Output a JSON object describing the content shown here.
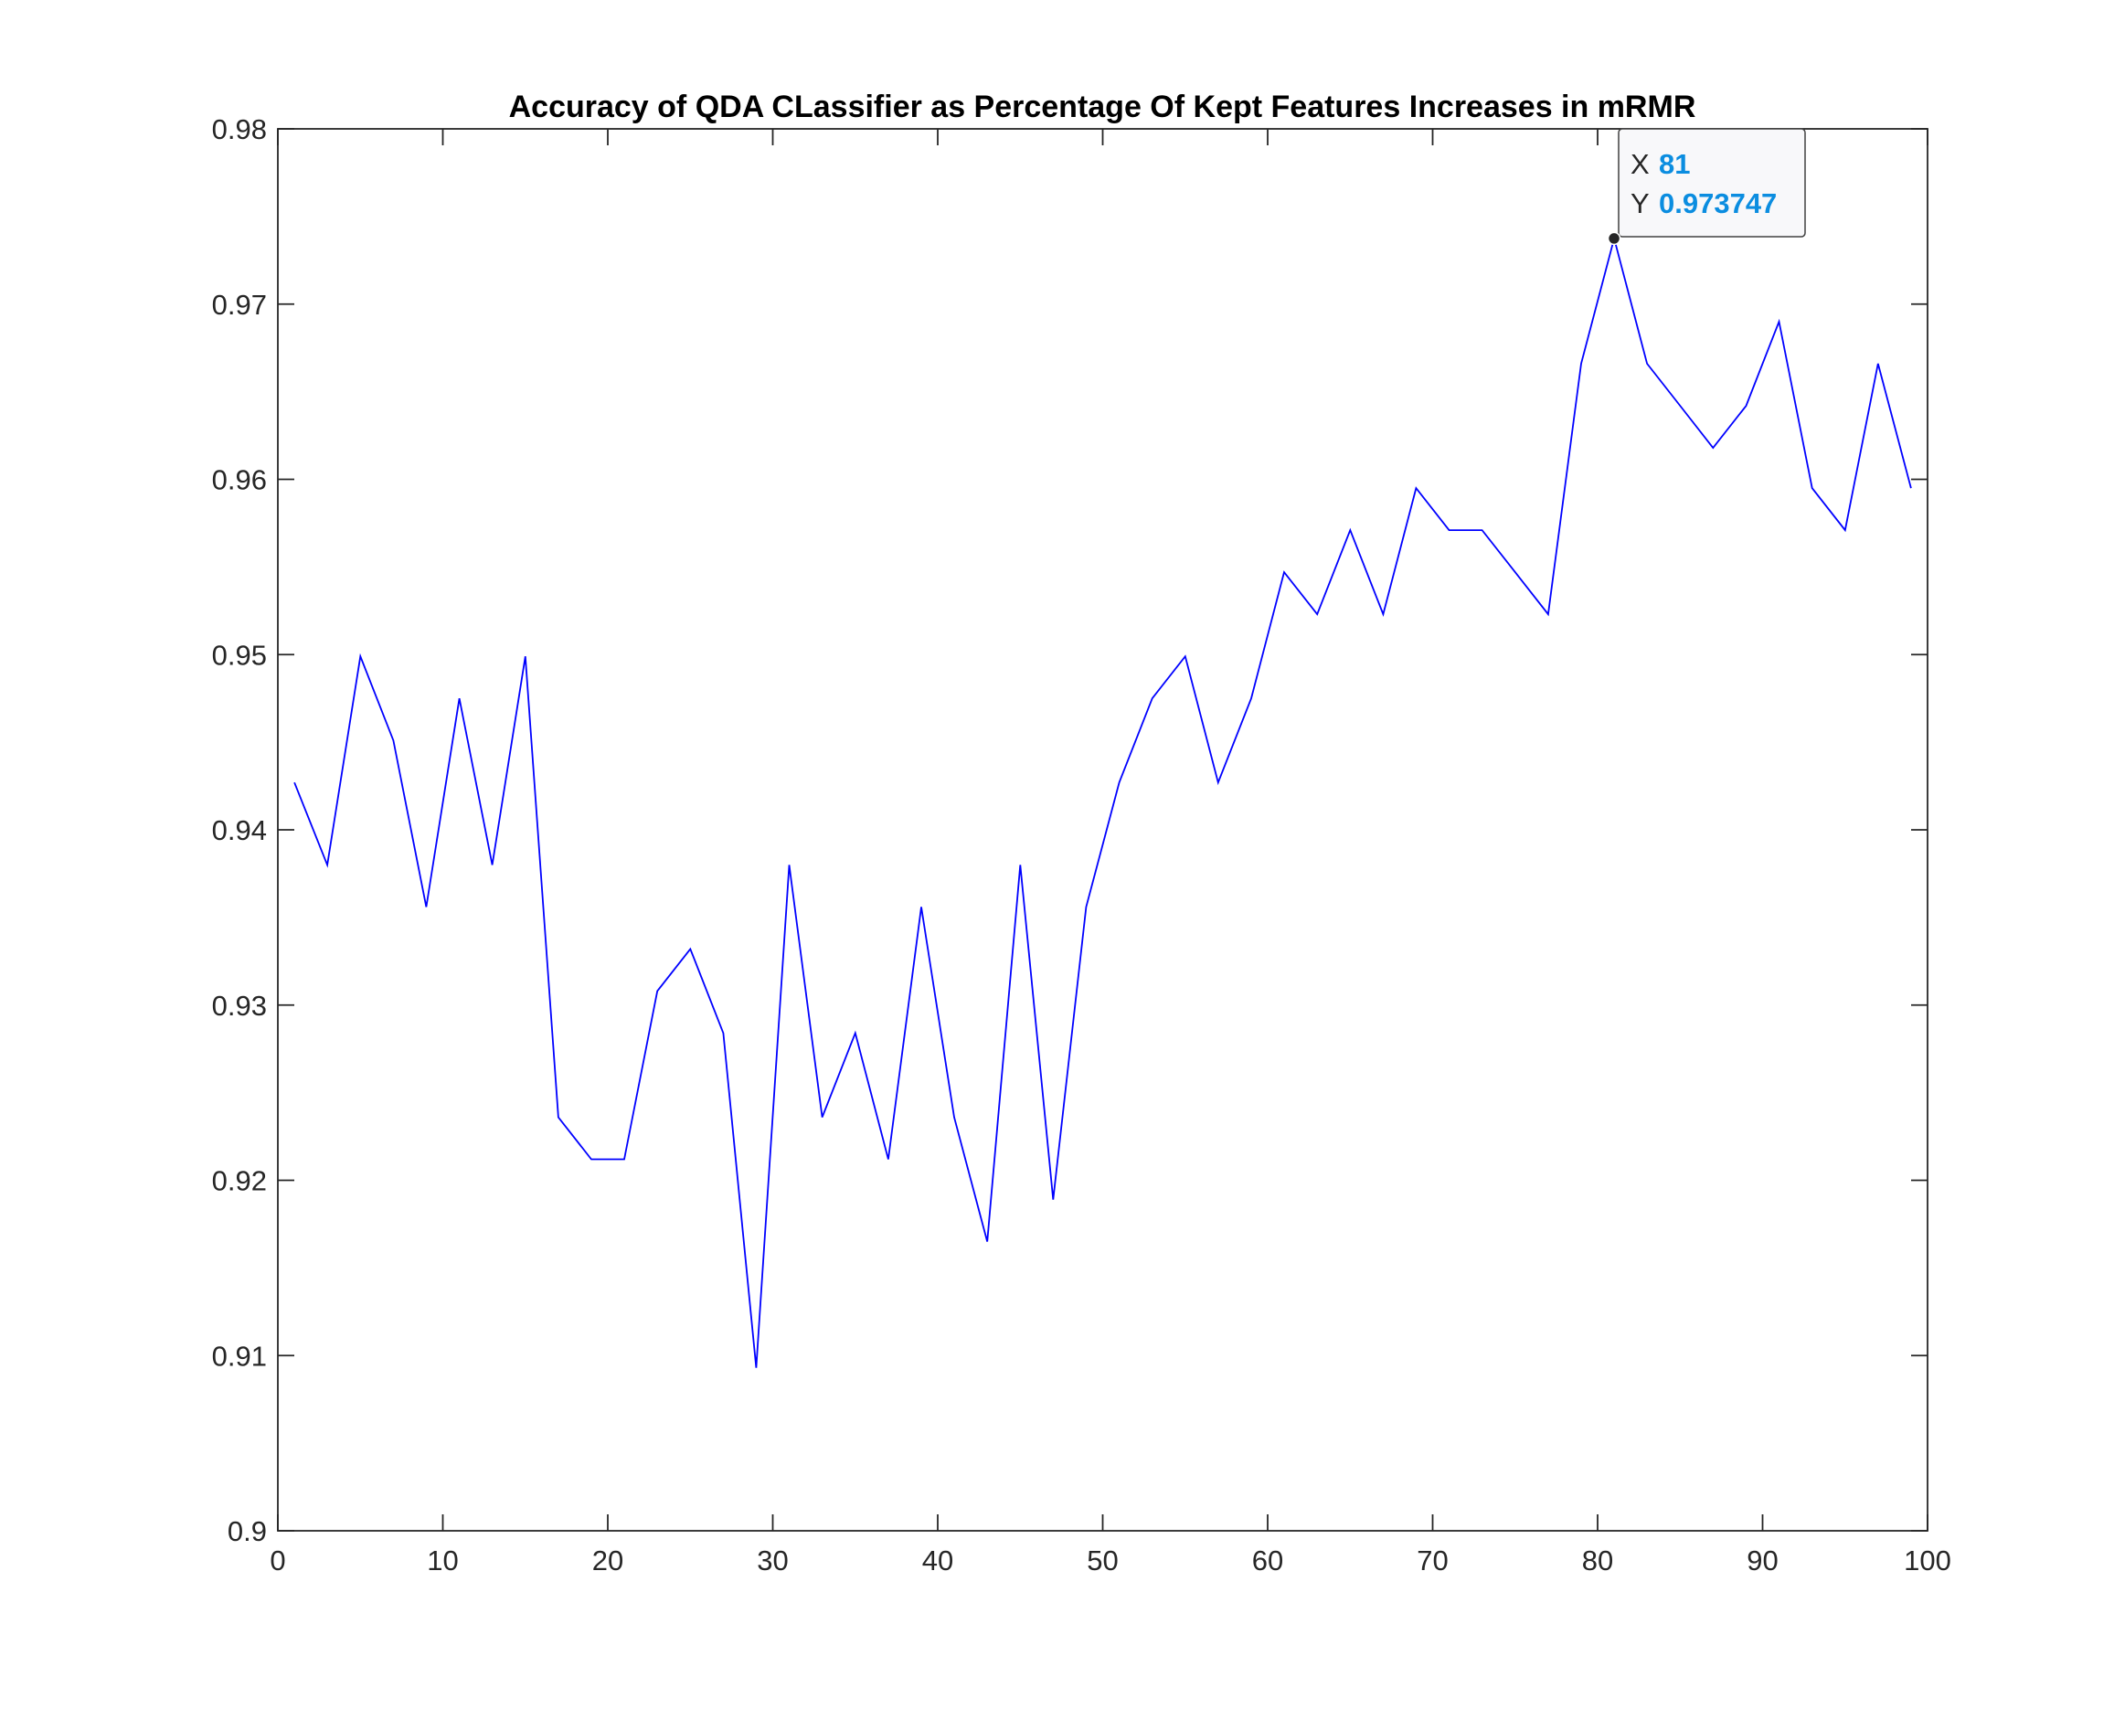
{
  "chart_data": {
    "type": "line",
    "title": "Accuracy of QDA CLassifier as Percentage Of Kept Features Increases in mRMR",
    "xlabel": "",
    "ylabel": "",
    "xlim": [
      0,
      100
    ],
    "ylim": [
      0.9,
      0.98
    ],
    "xticks": [
      0,
      10,
      20,
      30,
      40,
      50,
      60,
      70,
      80,
      90,
      100
    ],
    "xtick_labels": [
      "0",
      "10",
      "20",
      "30",
      "40",
      "50",
      "60",
      "70",
      "80",
      "90",
      "100"
    ],
    "yticks": [
      0.9,
      0.91,
      0.92,
      0.93,
      0.94,
      0.95,
      0.96,
      0.97,
      0.98
    ],
    "ytick_labels": [
      "0.9",
      "0.91",
      "0.92",
      "0.93",
      "0.94",
      "0.95",
      "0.96",
      "0.97",
      "0.98"
    ],
    "grid": false,
    "series": [
      {
        "color": "#0000ff",
        "x": [
          1,
          3,
          5,
          7,
          9,
          11,
          13,
          15,
          17,
          19,
          21,
          23,
          25,
          27,
          29,
          31,
          33,
          35,
          37,
          39,
          41,
          43,
          45,
          47,
          49,
          51,
          53,
          55,
          57,
          59,
          61,
          63,
          65,
          67,
          69,
          71,
          73,
          75,
          77,
          79,
          81,
          83,
          85,
          87,
          89,
          91,
          93,
          95,
          97,
          99
        ],
        "y": [
          0.9427,
          0.938,
          0.9499,
          0.9451,
          0.9356,
          0.9475,
          0.938,
          0.9499,
          0.9236,
          0.9212,
          0.9212,
          0.9308,
          0.9332,
          0.9284,
          0.9093,
          0.938,
          0.9236,
          0.9284,
          0.9212,
          0.9356,
          0.9236,
          0.9165,
          0.938,
          0.9189,
          0.9356,
          0.9427,
          0.9475,
          0.9499,
          0.9427,
          0.9475,
          0.9547,
          0.9523,
          0.9571,
          0.9523,
          0.9595,
          0.9571,
          0.9571,
          0.9547,
          0.9523,
          0.9666,
          0.973747,
          0.9666,
          0.9642,
          0.9618,
          0.9642,
          0.969,
          0.9595,
          0.9571,
          0.9666,
          0.9595
        ]
      }
    ],
    "datatip": {
      "x_key": "X",
      "x_value": "81",
      "y_key": "Y",
      "y_value": "0.973747",
      "value_color": "#0b8de0"
    }
  }
}
